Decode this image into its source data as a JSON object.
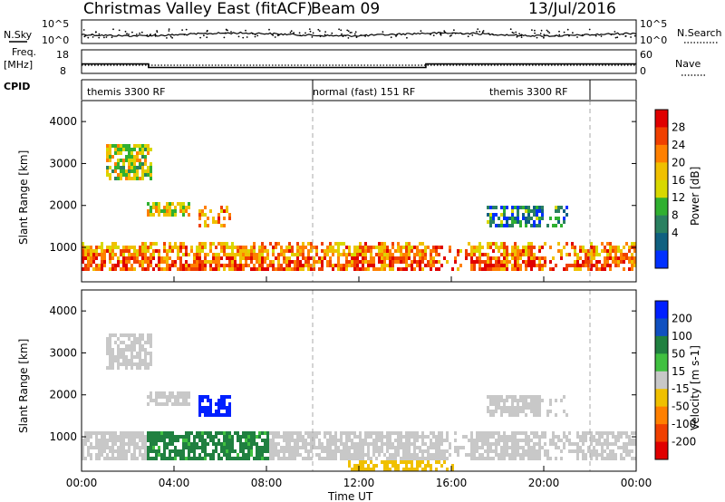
{
  "header": {
    "radar": "Christmas Valley East (fitACF)",
    "beam": "Beam 09",
    "date": "13/Jul/2016"
  },
  "nsky_panel": {
    "label": "N.Sky",
    "right_label": "N.Search",
    "left_ticks": [
      "10^5",
      "10^0"
    ],
    "right_ticks": [
      "10^5",
      "10^0"
    ]
  },
  "freq_panel": {
    "label_line1": "Freq.",
    "label_line2": "[MHz]",
    "right_label": "Nave",
    "left_ticks": [
      "18",
      "8"
    ],
    "right_ticks": [
      "60",
      "0"
    ]
  },
  "cpid_panel": {
    "label": "CPID",
    "segments": [
      {
        "label": "themis 3300 RF",
        "start_h": 0,
        "end_h": 10
      },
      {
        "label": "normal (fast) 151 RF",
        "start_h": 10,
        "end_h": 22
      },
      {
        "label": "themis 3300 RF",
        "start_h": 22,
        "end_h": 24
      }
    ]
  },
  "power_colorbar": {
    "label": "Power [dB]",
    "ticks": [
      "28",
      "24",
      "20",
      "16",
      "12",
      "8",
      "4"
    ],
    "colors": [
      "#e00000",
      "#f04000",
      "#ff8000",
      "#f0c000",
      "#d8d800",
      "#30b030",
      "#2a8060",
      "#106080",
      "#0030ff"
    ]
  },
  "velocity_colorbar": {
    "label": "Velocity [m s-1]",
    "ticks": [
      "200",
      "100",
      "50",
      "15",
      "-15",
      "-50",
      "-100",
      "-200"
    ],
    "colors": [
      "#0020ff",
      "#1050c0",
      "#208040",
      "#40c040",
      "#c8c8c8",
      "#f0c000",
      "#ff8000",
      "#f04000",
      "#e00000"
    ]
  },
  "xaxis": {
    "label": "Time UT",
    "ticks": [
      "00:00",
      "04:00",
      "08:00",
      "12:00",
      "16:00",
      "20:00",
      "00:00"
    ]
  },
  "yaxis": {
    "label": "Slant Range [km]",
    "ticks": [
      "1000",
      "2000",
      "3000",
      "4000"
    ]
  },
  "chart_data": {
    "type": "heatmap",
    "x_range_hours": [
      0,
      24
    ],
    "y_range_km": [
      180,
      4500
    ],
    "frequency_mhz": [
      {
        "start_h": 0,
        "end_h": 2.9,
        "value": 12.0
      },
      {
        "start_h": 2.9,
        "end_h": 14.9,
        "value": 10.5
      },
      {
        "start_h": 14.9,
        "end_h": 24,
        "value": 12.0
      }
    ],
    "power_regions": [
      {
        "t0": 0,
        "t1": 24,
        "r0": 450,
        "r1": 1100,
        "level": 22
      },
      {
        "t0": 1.0,
        "t1": 3.0,
        "r0": 2600,
        "r1": 3500,
        "level": 16
      },
      {
        "t0": 2.8,
        "t1": 4.6,
        "r0": 1700,
        "r1": 2100,
        "level": 18
      },
      {
        "t0": 5.0,
        "t1": 6.4,
        "r0": 1500,
        "r1": 2000,
        "level": 22
      },
      {
        "t0": 17.5,
        "t1": 21.0,
        "r0": 1500,
        "r1": 2000,
        "level": 8
      }
    ],
    "velocity_regions": [
      {
        "t0": 0,
        "t1": 24,
        "r0": 400,
        "r1": 1100,
        "velocity": 0
      },
      {
        "t0": 5.0,
        "t1": 6.4,
        "r0": 1500,
        "r1": 2000,
        "velocity": 180
      },
      {
        "t0": 2.8,
        "t1": 8.0,
        "r0": 400,
        "r1": 1100,
        "velocity": 40
      },
      {
        "t0": 11.5,
        "t1": 16.0,
        "r0": 200,
        "r1": 400,
        "velocity": -40
      }
    ]
  }
}
